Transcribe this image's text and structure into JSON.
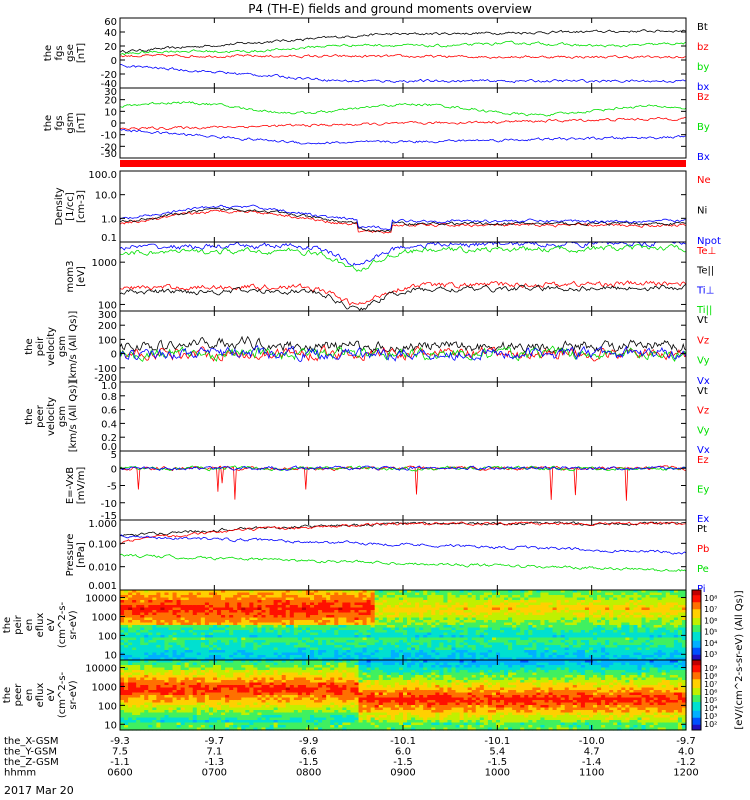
{
  "title": "P4 (TH-E) fields and ground moments overview",
  "date_label": "2017 Mar 20",
  "colors": {
    "black": "#000000",
    "red": "#ff0000",
    "green": "#00e000",
    "blue": "#0000ff",
    "axis": "#000000"
  },
  "x_axis": {
    "ticks": [
      "0600",
      "0700",
      "0800",
      "0900",
      "1000",
      "1100",
      "1200"
    ],
    "rows": [
      {
        "label": "the_X-GSM",
        "values": [
          "-9.3",
          "-9.7",
          "-9.9",
          "-10.1",
          "-10.1",
          "-10.0",
          "-9.7"
        ]
      },
      {
        "label": "the_Y-GSM",
        "values": [
          "7.5",
          "7.1",
          "6.6",
          "6.0",
          "5.4",
          "4.7",
          "4.0"
        ]
      },
      {
        "label": "the_Z-GSM",
        "values": [
          "-1.1",
          "-1.3",
          "-1.5",
          "-1.5",
          "-1.5",
          "-1.4",
          "-1.2"
        ]
      },
      {
        "label": "hhmm",
        "values": [
          "0600",
          "0700",
          "0800",
          "0900",
          "1000",
          "1100",
          "1200"
        ]
      }
    ]
  },
  "chart_data": [
    {
      "id": "fgs_gse",
      "type": "line",
      "ylabel": [
        "the",
        "fgs",
        "gse",
        "[nT]"
      ],
      "ylim": [
        -40,
        60
      ],
      "yticks": [
        "60",
        "40",
        "20",
        "0",
        "-20",
        "-40"
      ],
      "series": [
        {
          "name": "Bt",
          "color": "#000000"
        },
        {
          "name": "bz",
          "color": "#ff0000"
        },
        {
          "name": "by",
          "color": "#00e000"
        },
        {
          "name": "bx",
          "color": "#0000ff"
        }
      ]
    },
    {
      "id": "fgs_gsm",
      "type": "line",
      "ylabel": [
        "the",
        "fgs",
        "gsm",
        "[nT]"
      ],
      "ylim": [
        -30,
        30
      ],
      "yticks": [
        "30",
        "20",
        "10",
        "0",
        "-10",
        "-20",
        "-30"
      ],
      "series": [
        {
          "name": "Bz",
          "color": "#ff0000"
        },
        {
          "name": "By",
          "color": "#00e000"
        },
        {
          "name": "Bx",
          "color": "#0000ff"
        }
      ]
    },
    {
      "id": "density",
      "type": "line",
      "scale": "log",
      "ylabel": [
        "Density",
        "[1/cc]",
        "[cm-3]"
      ],
      "ylim": [
        0.1,
        100
      ],
      "yticks": [
        "100.0",
        "10.0",
        "1.0",
        "0.1"
      ],
      "series": [
        {
          "name": "Ne",
          "color": "#ff0000"
        },
        {
          "name": "Ni",
          "color": "#000000"
        },
        {
          "name": "Npot",
          "color": "#0000ff"
        }
      ]
    },
    {
      "id": "temperature",
      "type": "line",
      "scale": "log",
      "ylabel": [
        "mom3",
        "[eV]"
      ],
      "ylim": [
        70,
        3000
      ],
      "yticks": [
        "1000",
        "100"
      ],
      "series": [
        {
          "name": "Te⊥",
          "color": "#ff0000"
        },
        {
          "name": "Te||",
          "color": "#000000"
        },
        {
          "name": "Ti⊥",
          "color": "#0000ff"
        },
        {
          "name": "Ti||",
          "color": "#00e000"
        }
      ]
    },
    {
      "id": "peir_velocity",
      "type": "line",
      "ylabel": [
        "the",
        "peir",
        "velocity",
        "gsm",
        "[km/s (All Qs)]"
      ],
      "ylim": [
        -200,
        300
      ],
      "yticks": [
        "300",
        "200",
        "100",
        "0",
        "-100",
        "-200"
      ],
      "series": [
        {
          "name": "Vt",
          "color": "#000000"
        },
        {
          "name": "Vz",
          "color": "#ff0000"
        },
        {
          "name": "Vy",
          "color": "#00e000"
        },
        {
          "name": "Vx",
          "color": "#0000ff"
        }
      ]
    },
    {
      "id": "peer_velocity",
      "type": "line",
      "ylabel": [
        "the",
        "peer",
        "velocity",
        "gsm",
        "[km/s (All Qs)]"
      ],
      "ylim": [
        0,
        1
      ],
      "yticks": [
        "1.0",
        "0.8",
        "0.6",
        "0.4",
        "0.2",
        "0.0"
      ],
      "series": [
        {
          "name": "Vt",
          "color": "#000000"
        },
        {
          "name": "Vz",
          "color": "#ff0000"
        },
        {
          "name": "Vy",
          "color": "#00e000"
        },
        {
          "name": "Vx",
          "color": "#0000ff"
        }
      ]
    },
    {
      "id": "efield",
      "type": "line",
      "ylabel": [
        "E=-VxB",
        "[mV/m]"
      ],
      "ylim": [
        -15,
        5
      ],
      "yticks": [
        "5",
        "0",
        "-5",
        "-10",
        "-15"
      ],
      "series": [
        {
          "name": "Ez",
          "color": "#ff0000"
        },
        {
          "name": "Ey",
          "color": "#00e000"
        },
        {
          "name": "Ex",
          "color": "#0000ff"
        }
      ]
    },
    {
      "id": "pressure",
      "type": "line",
      "scale": "log",
      "ylabel": [
        "Pressure",
        "[nPa]"
      ],
      "ylim": [
        0.001,
        1.0
      ],
      "yticks": [
        "1.000",
        "0.100",
        "0.010",
        "0.001"
      ],
      "series": [
        {
          "name": "Pt",
          "color": "#000000"
        },
        {
          "name": "Pb",
          "color": "#ff0000"
        },
        {
          "name": "Pe",
          "color": "#00e000"
        },
        {
          "name": "Pi",
          "color": "#0000ff"
        }
      ]
    },
    {
      "id": "peir_spec",
      "type": "heatmap",
      "scale": "log",
      "ylabel": [
        "the",
        "peir",
        "en",
        "eflux",
        "eV",
        "(cm^2-s-",
        "sr-eV)"
      ],
      "ylim": [
        5,
        25000
      ],
      "yticks": [
        "10000",
        "1000",
        "100",
        "10"
      ],
      "colorbar": {
        "ticks": [
          "10⁸",
          "10⁷",
          "10⁶",
          "10⁵",
          "10⁴",
          "10³"
        ]
      }
    },
    {
      "id": "peer_spec",
      "type": "heatmap",
      "scale": "log",
      "ylabel": [
        "the",
        "peer",
        "en",
        "eflux",
        "eV",
        "(cm^2-s-",
        "sr-eV)"
      ],
      "ylim": [
        5,
        25000
      ],
      "yticks": [
        "10000",
        "1000",
        "100",
        "10"
      ],
      "colorbar": {
        "ticks": [
          "10⁹",
          "10⁸",
          "10⁷",
          "10⁶",
          "10⁵",
          "10⁴",
          "10³",
          "10²"
        ]
      }
    }
  ],
  "colorbar_unit": "[eV/(cm^2-s-sr-eV) (All Qs)]"
}
